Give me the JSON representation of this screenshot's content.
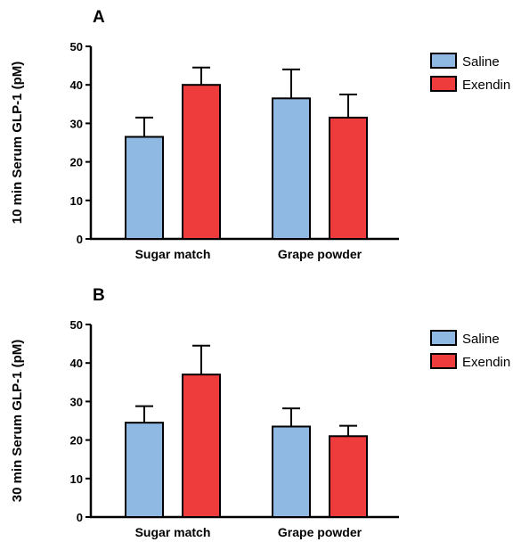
{
  "chart_data": [
    {
      "type": "bar",
      "panel": "A",
      "ylabel": "10 min Serum GLP-1 (pM)",
      "ylim": [
        0,
        50
      ],
      "yticks": [
        0,
        10,
        20,
        30,
        40,
        50
      ],
      "categories": [
        "Sugar match",
        "Grape powder"
      ],
      "series": [
        {
          "name": "Saline",
          "color": "#8fb8e3",
          "values": [
            26.5,
            36.5
          ],
          "errors": [
            5,
            7.5
          ]
        },
        {
          "name": "Exendin",
          "color": "#ee3b3b",
          "values": [
            40,
            31.5
          ],
          "errors": [
            4.5,
            6
          ]
        }
      ],
      "legend": "right"
    },
    {
      "type": "bar",
      "panel": "B",
      "ylabel": "30 min Serum GLP-1 (pM)",
      "ylim": [
        0,
        50
      ],
      "yticks": [
        0,
        10,
        20,
        30,
        40,
        50
      ],
      "categories": [
        "Sugar match",
        "Grape powder"
      ],
      "series": [
        {
          "name": "Saline",
          "color": "#8fb8e3",
          "values": [
            24.5,
            23.5
          ],
          "errors": [
            4.3,
            4.7
          ]
        },
        {
          "name": "Exendin",
          "color": "#ee3b3b",
          "values": [
            37,
            21
          ],
          "errors": [
            7.5,
            2.7
          ]
        }
      ],
      "legend": "right"
    }
  ]
}
